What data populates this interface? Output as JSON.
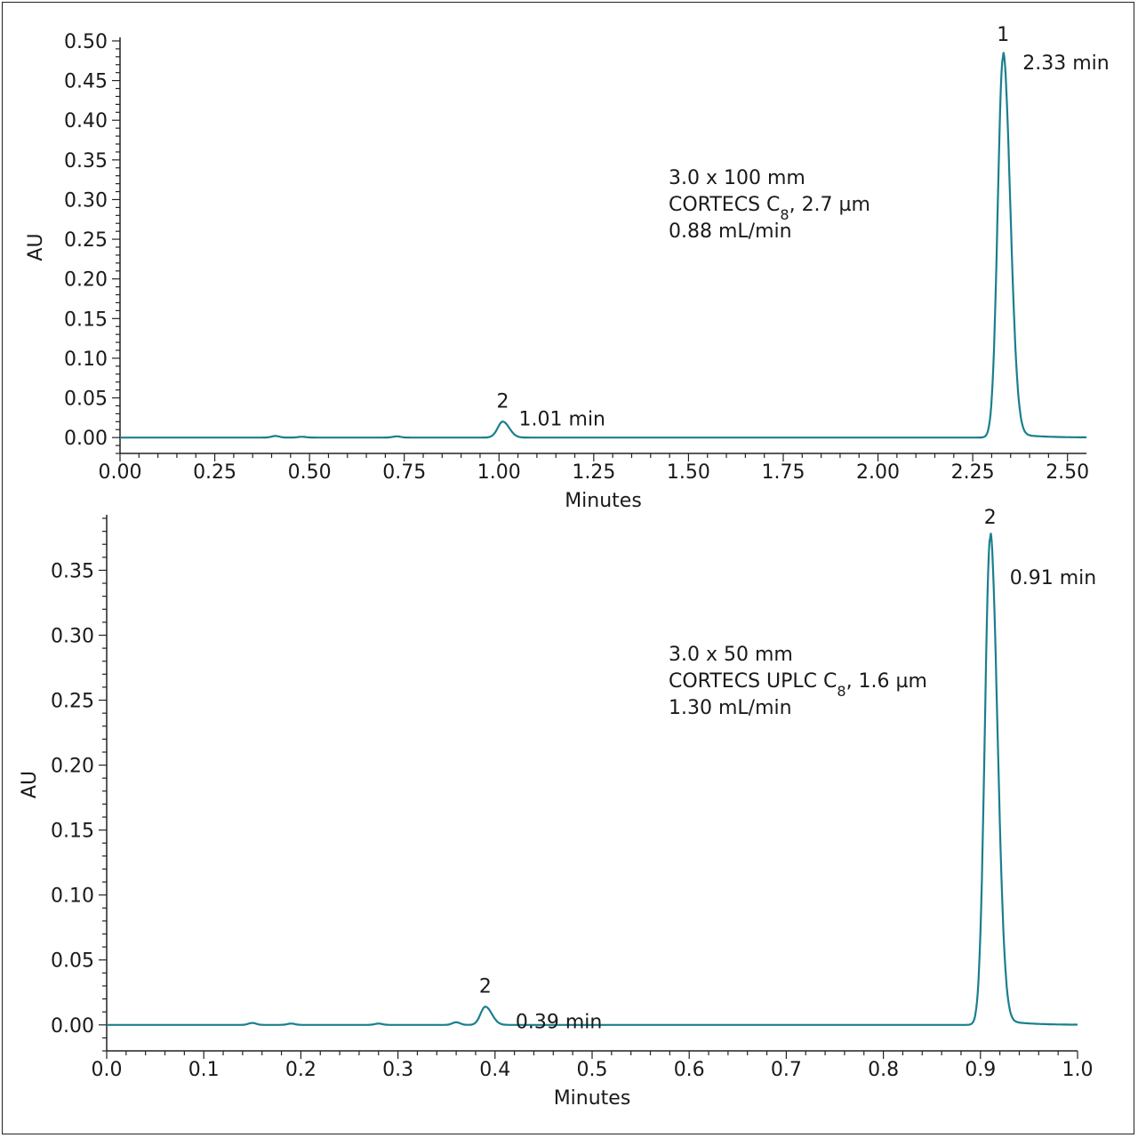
{
  "chart_data": [
    {
      "type": "line",
      "xlabel": "Minutes",
      "ylabel": "AU",
      "xlim": [
        0.0,
        2.55
      ],
      "ylim": [
        -0.02,
        0.5
      ],
      "xticks": [
        "0.00",
        "0.25",
        "0.50",
        "0.75",
        "1.00",
        "1.25",
        "1.50",
        "1.75",
        "2.00",
        "2.25",
        "2.50"
      ],
      "yticks": [
        "0.00",
        "0.05",
        "0.10",
        "0.15",
        "0.20",
        "0.25",
        "0.30",
        "0.35",
        "0.40",
        "0.45",
        "0.50"
      ],
      "grid": false,
      "color": "#1a7f8e",
      "peaks": [
        {
          "number": "1",
          "time": 2.33,
          "height": 0.48,
          "label": "2.33 min"
        },
        {
          "number": "2",
          "time": 1.01,
          "height": 0.02,
          "label": "1.01 min"
        }
      ],
      "minor_peaks": [
        {
          "time": 0.41,
          "height": 0.002
        },
        {
          "time": 0.48,
          "height": 0.001
        },
        {
          "time": 0.73,
          "height": 0.0015
        },
        {
          "time": 0.99,
          "height": 0.001
        }
      ],
      "annotation": [
        "3.0 x 100 mm",
        "CORTECS C8, 2.7 µm",
        "0.88 mL/min"
      ]
    },
    {
      "type": "line",
      "xlabel": "Minutes",
      "ylabel": "AU",
      "xlim": [
        0.0,
        1.0
      ],
      "ylim": [
        -0.02,
        0.39
      ],
      "xticks": [
        "0.0",
        "0.1",
        "0.2",
        "0.3",
        "0.4",
        "0.5",
        "0.6",
        "0.7",
        "0.8",
        "0.9",
        "1.0"
      ],
      "yticks": [
        "0.00",
        "0.05",
        "0.10",
        "0.15",
        "0.20",
        "0.25",
        "0.30",
        "0.35"
      ],
      "grid": false,
      "color": "#1a7f8e",
      "peaks": [
        {
          "number": "2",
          "time": 0.91,
          "height": 0.375,
          "label": "0.91 min"
        },
        {
          "number": "2",
          "time": 0.39,
          "height": 0.014,
          "label": "0.39 min"
        }
      ],
      "minor_peaks": [
        {
          "time": 0.15,
          "height": 0.0015
        },
        {
          "time": 0.19,
          "height": 0.001
        },
        {
          "time": 0.28,
          "height": 0.001
        },
        {
          "time": 0.36,
          "height": 0.002
        }
      ],
      "annotation": [
        "3.0 x 50 mm",
        "CORTECS UPLC C8, 1.6 µm",
        "1.30 mL/min"
      ]
    }
  ]
}
